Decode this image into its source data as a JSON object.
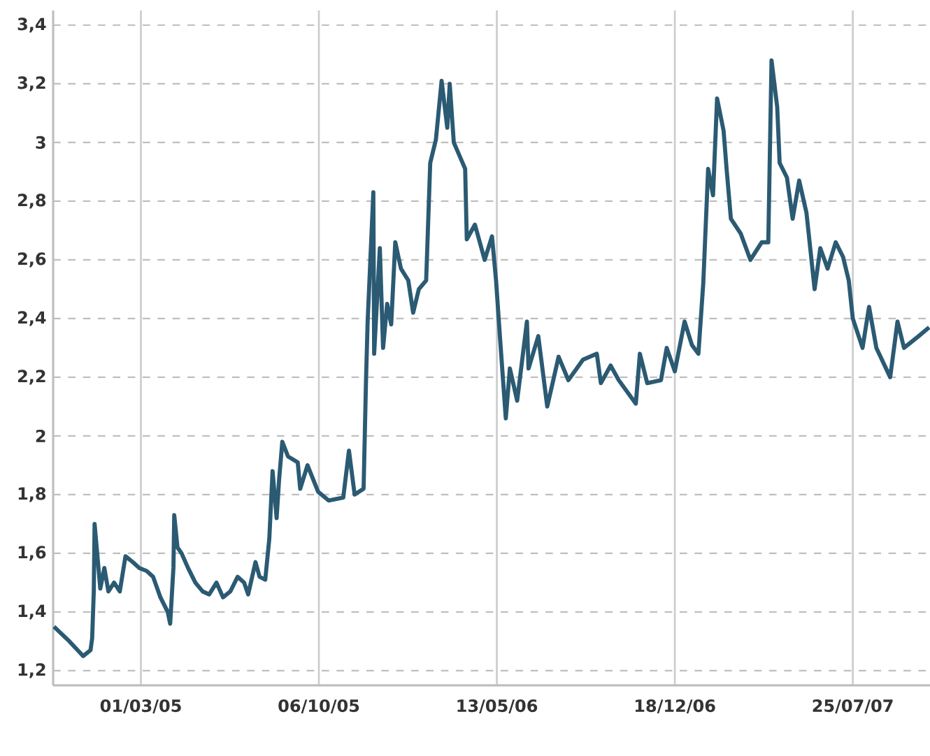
{
  "chart_data": {
    "type": "line",
    "color": "#2b5a73",
    "grid": true,
    "xlim": [
      "2004-11-13",
      "2007-10-28"
    ],
    "ylim": [
      1.15,
      3.45
    ],
    "xticks": [
      {
        "value": "2005-03-01",
        "label": "01/03/05"
      },
      {
        "value": "2005-10-06",
        "label": "06/10/05"
      },
      {
        "value": "2006-05-13",
        "label": "13/05/06"
      },
      {
        "value": "2006-12-18",
        "label": "18/12/06"
      },
      {
        "value": "2007-07-25",
        "label": "25/07/07"
      }
    ],
    "yticks": [
      {
        "value": 1.2,
        "label": "1,2"
      },
      {
        "value": 1.4,
        "label": "1,4"
      },
      {
        "value": 1.6,
        "label": "1,6"
      },
      {
        "value": 1.8,
        "label": "1,8"
      },
      {
        "value": 2,
        "label": "2"
      },
      {
        "value": 2.2,
        "label": "2,2"
      },
      {
        "value": 2.4,
        "label": "2,4"
      },
      {
        "value": 2.6,
        "label": "2,6"
      },
      {
        "value": 2.8,
        "label": "2,8"
      },
      {
        "value": 3,
        "label": "3"
      },
      {
        "value": 3.2,
        "label": "3,2"
      },
      {
        "value": 3.4,
        "label": "3,4"
      }
    ],
    "x": [
      "2004-11-14",
      "2004-12-03",
      "2004-12-20",
      "2004-12-29",
      "2004-12-31",
      "2005-01-02",
      "2005-01-03",
      "2005-01-10",
      "2005-01-15",
      "2005-01-20",
      "2005-01-27",
      "2005-02-03",
      "2005-02-10",
      "2005-02-19",
      "2005-02-27",
      "2005-03-08",
      "2005-03-16",
      "2005-03-25",
      "2005-04-03",
      "2005-04-06",
      "2005-04-10",
      "2005-04-11",
      "2005-04-15",
      "2005-04-20",
      "2005-04-28",
      "2005-05-07",
      "2005-05-16",
      "2005-05-24",
      "2005-06-02",
      "2005-06-10",
      "2005-06-19",
      "2005-06-28",
      "2005-07-06",
      "2005-07-11",
      "2005-07-20",
      "2005-07-25",
      "2005-08-01",
      "2005-08-06",
      "2005-08-10",
      "2005-08-15",
      "2005-08-18",
      "2005-08-22",
      "2005-08-29",
      "2005-09-10",
      "2005-09-13",
      "2005-09-22",
      "2005-10-05",
      "2005-10-18",
      "2005-11-05",
      "2005-11-12",
      "2005-11-19",
      "2005-11-30",
      "2005-12-03",
      "2005-12-05",
      "2005-12-12",
      "2005-12-13",
      "2005-12-20",
      "2005-12-24",
      "2005-12-29",
      "2006-01-03",
      "2006-01-08",
      "2006-01-15",
      "2006-01-24",
      "2006-01-30",
      "2006-02-06",
      "2006-02-15",
      "2006-02-20",
      "2006-02-27",
      "2006-03-06",
      "2006-03-13",
      "2006-03-16",
      "2006-03-21",
      "2006-04-04",
      "2006-04-06",
      "2006-04-16",
      "2006-04-28",
      "2006-05-07",
      "2006-05-12",
      "2006-05-17",
      "2006-05-24",
      "2006-05-29",
      "2006-06-07",
      "2006-06-19",
      "2006-06-21",
      "2006-07-03",
      "2006-07-14",
      "2006-07-28",
      "2006-08-09",
      "2006-08-27",
      "2006-09-13",
      "2006-09-18",
      "2006-09-30",
      "2006-10-10",
      "2006-10-31",
      "2006-11-05",
      "2006-11-14",
      "2006-12-01",
      "2006-12-08",
      "2006-12-18",
      "2006-12-30",
      "2007-01-08",
      "2007-01-16",
      "2007-01-22",
      "2007-01-28",
      "2007-02-03",
      "2007-02-08",
      "2007-02-16",
      "2007-02-20",
      "2007-02-25",
      "2007-03-09",
      "2007-03-21",
      "2007-04-04",
      "2007-04-12",
      "2007-04-16",
      "2007-04-23",
      "2007-04-26",
      "2007-05-05",
      "2007-05-12",
      "2007-05-20",
      "2007-05-29",
      "2007-06-08",
      "2007-06-15",
      "2007-06-24",
      "2007-07-04",
      "2007-07-13",
      "2007-07-20",
      "2007-07-25",
      "2007-08-06",
      "2007-08-14",
      "2007-08-23",
      "2007-09-09",
      "2007-09-18",
      "2007-09-26",
      "2007-10-14",
      "2007-10-27"
    ],
    "values": [
      1.35,
      1.3,
      1.25,
      1.27,
      1.31,
      1.47,
      1.7,
      1.48,
      1.55,
      1.47,
      1.5,
      1.47,
      1.59,
      1.57,
      1.55,
      1.54,
      1.52,
      1.45,
      1.4,
      1.36,
      1.55,
      1.73,
      1.62,
      1.6,
      1.55,
      1.5,
      1.47,
      1.46,
      1.5,
      1.45,
      1.47,
      1.52,
      1.5,
      1.46,
      1.57,
      1.52,
      1.51,
      1.65,
      1.88,
      1.72,
      1.85,
      1.98,
      1.93,
      1.91,
      1.82,
      1.9,
      1.81,
      1.78,
      1.79,
      1.95,
      1.8,
      1.82,
      2.19,
      2.39,
      2.83,
      2.28,
      2.64,
      2.3,
      2.45,
      2.38,
      2.66,
      2.57,
      2.53,
      2.42,
      2.5,
      2.53,
      2.93,
      3.01,
      3.21,
      3.05,
      3.2,
      3.0,
      2.91,
      2.67,
      2.72,
      2.6,
      2.68,
      2.53,
      2.33,
      2.06,
      2.23,
      2.12,
      2.39,
      2.23,
      2.34,
      2.1,
      2.27,
      2.19,
      2.26,
      2.28,
      2.18,
      2.24,
      2.19,
      2.11,
      2.28,
      2.18,
      2.19,
      2.3,
      2.22,
      2.39,
      2.31,
      2.28,
      2.52,
      2.91,
      2.82,
      3.15,
      3.04,
      2.9,
      2.74,
      2.69,
      2.6,
      2.66,
      2.66,
      3.28,
      3.12,
      2.93,
      2.88,
      2.74,
      2.87,
      2.76,
      2.5,
      2.64,
      2.57,
      2.66,
      2.61,
      2.53,
      2.4,
      2.3,
      2.44,
      2.3,
      2.2,
      2.39,
      2.3,
      2.34,
      2.37
    ]
  }
}
